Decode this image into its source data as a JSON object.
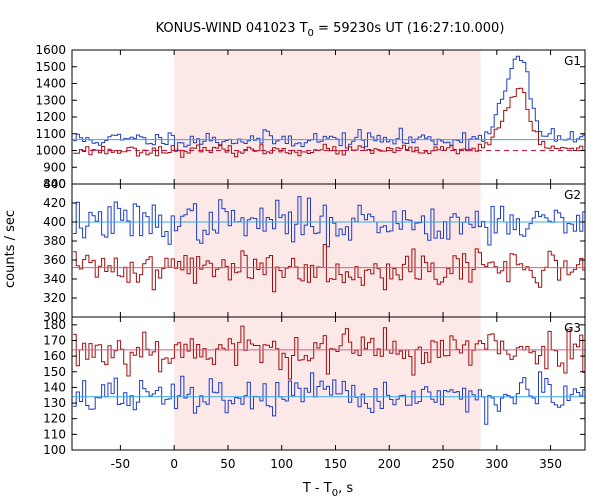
{
  "title": {
    "prefix": "KONUS-WIND 041023 T",
    "sub": "0",
    "suffix": " = 59230s UT (16:27:10.000)"
  },
  "ylabel": "counts / sec",
  "xlabel": {
    "prefix": "T - T",
    "sub": "0",
    "suffix": ", s"
  },
  "chart_data": [
    {
      "type": "line",
      "name": "G1",
      "xlim": [
        -95,
        382
      ],
      "ylim": [
        800,
        1600
      ],
      "yticks": [
        800,
        900,
        1000,
        1100,
        1200,
        1300,
        1400,
        1500,
        1600
      ],
      "shaded_interval": [
        0,
        285
      ],
      "shade_color": "#fde8e8",
      "series": [
        {
          "color": "#1f3fbf",
          "fit_color": "#33aaee",
          "background_level": 1065,
          "noise": 25,
          "seed": 11,
          "peak": {
            "center": 322,
            "amplitude": 440,
            "rise": 14,
            "decay": 8
          }
        },
        {
          "color": "#a01010",
          "fit_color": "#cc1040",
          "background_level": 1000,
          "noise": 15,
          "seed": 23,
          "fit_dashed": true,
          "peak": {
            "center": 322,
            "amplitude": 330,
            "rise": 14,
            "decay": 8
          }
        }
      ]
    },
    {
      "type": "line",
      "name": "G2",
      "xlim": [
        -95,
        382
      ],
      "ylim": [
        300,
        440
      ],
      "yticks": [
        300,
        320,
        340,
        360,
        380,
        400,
        420,
        440
      ],
      "shaded_interval": [
        0,
        285
      ],
      "shade_color": "#fde8e8",
      "series": [
        {
          "color": "#1f3fbf",
          "fit_color": "#33aaee",
          "background_level": 400,
          "noise": 11,
          "seed": 37
        },
        {
          "color": "#a01010",
          "fit_color": "#cc6688",
          "background_level": 352,
          "noise": 10,
          "seed": 41
        }
      ]
    },
    {
      "type": "line",
      "name": "G3",
      "xlim": [
        -95,
        382
      ],
      "ylim": [
        100,
        185
      ],
      "yticks": [
        100,
        110,
        120,
        130,
        140,
        150,
        160,
        170,
        180
      ],
      "shaded_interval": [
        0,
        285
      ],
      "shade_color": "#fde8e8",
      "series": [
        {
          "color": "#a01010",
          "fit_color": "#cc6688",
          "background_level": 164,
          "noise": 7,
          "seed": 53
        },
        {
          "color": "#1f3fbf",
          "fit_color": "#33aaee",
          "background_level": 134,
          "noise": 6,
          "seed": 67
        }
      ]
    }
  ],
  "xticks": [
    -50,
    0,
    50,
    100,
    150,
    200,
    250,
    300,
    350
  ],
  "bin_width": 2.944,
  "t_start": -94
}
